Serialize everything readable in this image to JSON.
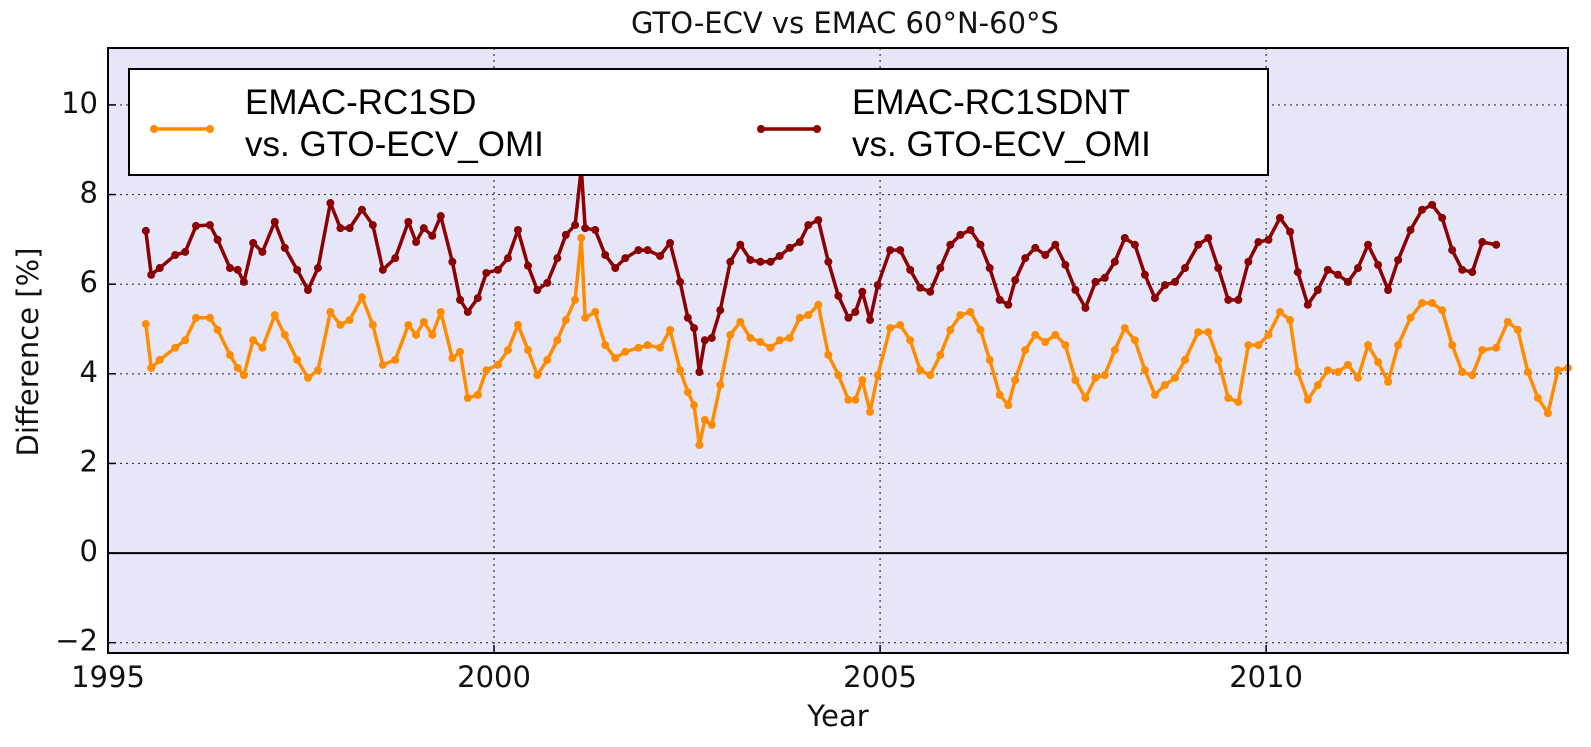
{
  "chart_data": {
    "type": "line",
    "title": "GTO-ECV vs EMAC 60°N-60°S",
    "xlabel": "Year",
    "ylabel": "Difference [%]",
    "x": [
      1995.49,
      1995.56,
      1995.67,
      1995.87,
      1996.0,
      1996.14,
      1996.32,
      1996.42,
      1996.58,
      1996.68,
      1996.76,
      1996.88,
      1997.0,
      1997.16,
      1997.29,
      1997.45,
      1997.59,
      1997.72,
      1997.88,
      1998.01,
      1998.13,
      1998.29,
      1998.43,
      1998.56,
      1998.72,
      1998.89,
      1998.99,
      1999.09,
      1999.2,
      1999.31,
      1999.46,
      1999.56,
      1999.66,
      1999.79,
      1999.9,
      2000.05,
      2000.18,
      2000.31,
      2000.44,
      2000.56,
      2000.69,
      2000.82,
      2000.93,
      2001.05,
      2001.13,
      2001.18,
      2001.31,
      2001.44,
      2001.57,
      2001.7,
      2001.87,
      2001.99,
      2002.15,
      2002.28,
      2002.41,
      2002.51,
      2002.59,
      2002.66,
      2002.73,
      2002.82,
      2002.93,
      2003.06,
      2003.19,
      2003.32,
      2003.45,
      2003.58,
      2003.7,
      2003.83,
      2003.96,
      2004.07,
      2004.2,
      2004.33,
      2004.46,
      2004.59,
      2004.68,
      2004.77,
      2004.87,
      2004.97,
      2005.13,
      2005.26,
      2005.39,
      2005.52,
      2005.65,
      2005.78,
      2005.91,
      2006.04,
      2006.17,
      2006.3,
      2006.42,
      2006.55,
      2006.66,
      2006.75,
      2006.88,
      2007.01,
      2007.14,
      2007.27,
      2007.4,
      2007.53,
      2007.66,
      2007.79,
      2007.91,
      2008.04,
      2008.17,
      2008.3,
      2008.43,
      2008.56,
      2008.69,
      2008.82,
      2008.95,
      2009.12,
      2009.25,
      2009.38,
      2009.51,
      2009.64,
      2009.77,
      2009.9,
      2010.03,
      2010.18,
      2010.31,
      2010.41,
      2010.54,
      2010.67,
      2010.8,
      2010.93,
      2011.06,
      2011.19,
      2011.32,
      2011.45,
      2011.58,
      2011.71,
      2011.87,
      2012.02,
      2012.15,
      2012.28,
      2012.41,
      2012.54,
      2012.67,
      2012.8,
      2012.98,
      2013.13,
      2013.26,
      2013.39,
      2013.52,
      2013.65,
      2013.78,
      2013.91
    ],
    "series": [
      {
        "name": "EMAC-RC1SD\nvs. GTO-ECV_OMI",
        "color": "#ff8c00",
        "values": [
          5.11,
          4.13,
          4.31,
          4.58,
          4.75,
          5.25,
          5.25,
          4.98,
          4.42,
          4.13,
          3.97,
          4.75,
          4.58,
          5.31,
          4.87,
          4.31,
          3.91,
          4.08,
          5.38,
          5.09,
          5.2,
          5.71,
          5.09,
          4.2,
          4.31,
          5.09,
          4.87,
          5.16,
          4.87,
          5.38,
          4.35,
          4.49,
          3.46,
          3.53,
          4.08,
          4.2,
          4.53,
          5.09,
          4.53,
          3.97,
          4.31,
          4.75,
          5.2,
          5.65,
          7.03,
          5.25,
          5.38,
          4.64,
          4.35,
          4.49,
          4.58,
          4.64,
          4.58,
          4.98,
          4.08,
          3.59,
          3.3,
          2.41,
          2.97,
          2.86,
          3.75,
          4.87,
          5.16,
          4.8,
          4.71,
          4.58,
          4.75,
          4.8,
          5.25,
          5.31,
          5.54,
          4.42,
          3.97,
          3.42,
          3.42,
          3.86,
          3.15,
          3.97,
          5.02,
          5.09,
          4.75,
          4.08,
          3.97,
          4.42,
          4.98,
          5.31,
          5.38,
          4.98,
          4.31,
          3.53,
          3.3,
          3.86,
          4.53,
          4.87,
          4.71,
          4.87,
          4.64,
          3.86,
          3.46,
          3.91,
          3.97,
          4.53,
          5.02,
          4.75,
          4.08,
          3.53,
          3.75,
          3.91,
          4.31,
          4.93,
          4.93,
          4.31,
          3.46,
          3.37,
          4.64,
          4.64,
          4.87,
          5.38,
          5.2,
          4.04,
          3.42,
          3.75,
          4.08,
          4.04,
          4.2,
          3.91,
          4.64,
          4.26,
          3.82,
          4.64,
          5.25,
          5.58,
          5.58,
          5.42,
          4.64,
          4.04,
          3.97,
          4.53,
          4.58,
          5.16,
          4.98,
          4.04,
          3.46,
          3.12,
          4.08,
          4.13
        ]
      },
      {
        "name": "EMAC-RC1SDNT\nvs. GTO-ECV_OMI",
        "color": "#8b0000",
        "values": [
          7.19,
          6.21,
          6.36,
          6.65,
          6.72,
          7.3,
          7.32,
          6.99,
          6.36,
          6.32,
          6.05,
          6.92,
          6.72,
          7.39,
          6.81,
          6.32,
          5.87,
          6.36,
          7.81,
          7.25,
          7.25,
          7.66,
          7.32,
          6.32,
          6.58,
          7.39,
          6.94,
          7.25,
          7.08,
          7.52,
          6.5,
          5.65,
          5.38,
          5.69,
          6.25,
          6.32,
          6.58,
          7.21,
          6.41,
          5.87,
          6.03,
          6.58,
          7.1,
          7.32,
          8.59,
          7.25,
          7.21,
          6.65,
          6.36,
          6.58,
          6.76,
          6.76,
          6.63,
          6.92,
          6.05,
          5.25,
          5.02,
          4.04,
          4.75,
          4.8,
          5.42,
          6.5,
          6.88,
          6.54,
          6.5,
          6.5,
          6.63,
          6.81,
          6.94,
          7.32,
          7.43,
          6.5,
          5.74,
          5.25,
          5.38,
          5.83,
          5.2,
          5.98,
          6.76,
          6.76,
          6.32,
          5.92,
          5.83,
          6.36,
          6.88,
          7.1,
          7.21,
          6.88,
          6.36,
          5.65,
          5.54,
          6.09,
          6.58,
          6.81,
          6.65,
          6.88,
          6.43,
          5.87,
          5.47,
          6.05,
          6.14,
          6.5,
          7.03,
          6.88,
          6.21,
          5.69,
          5.98,
          6.05,
          6.36,
          6.88,
          7.03,
          6.36,
          5.65,
          5.65,
          6.5,
          6.94,
          6.99,
          7.48,
          7.17,
          6.27,
          5.54,
          5.87,
          6.32,
          6.21,
          6.05,
          6.36,
          6.88,
          6.43,
          5.87,
          6.54,
          7.21,
          7.66,
          7.77,
          7.48,
          6.76,
          6.32,
          6.27,
          6.94,
          6.88,
          null,
          null,
          null,
          null,
          null,
          null,
          null
        ]
      }
    ],
    "xlim": [
      1995,
      2013.91
    ],
    "xticks": [
      1995,
      2000,
      2005,
      2010
    ],
    "ylim": [
      -2.23,
      11.27
    ],
    "yticks": [
      {
        "value": -2,
        "label": "−2"
      },
      0,
      2,
      4,
      6,
      8,
      10
    ],
    "axhline": 0,
    "grid": true,
    "background": "#e6e6f8",
    "legend": "upper left"
  }
}
